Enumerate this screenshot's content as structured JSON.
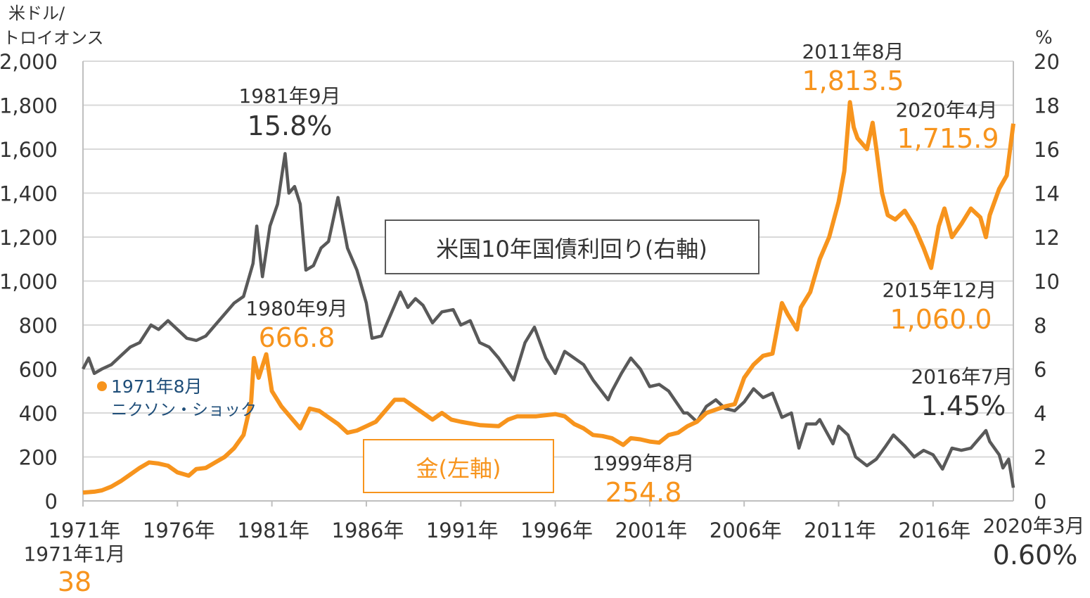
{
  "chart_data": {
    "type": "line",
    "left_axis": {
      "unit_label_line1": "米ドル/",
      "unit_label_line2": "トロイオンス",
      "range": [
        0,
        2000
      ],
      "ticks": [
        "0",
        "200",
        "400",
        "600",
        "800",
        "1,000",
        "1,200",
        "1,400",
        "1,600",
        "1,800",
        "2,000"
      ]
    },
    "right_axis": {
      "unit_label": "%",
      "range": [
        0,
        20
      ],
      "ticks": [
        "0",
        "2",
        "4",
        "6",
        "8",
        "10",
        "12",
        "14",
        "16",
        "18",
        "20"
      ]
    },
    "x_axis": {
      "range": [
        1971,
        2020.25
      ],
      "ticks": [
        1971,
        1976,
        1981,
        1986,
        1991,
        1996,
        2001,
        2006,
        2011,
        2016
      ],
      "tick_labels": [
        "1971年",
        "1976年",
        "1981年",
        "1986年",
        "1991年",
        "1996年",
        "2001年",
        "2006年",
        "2011年",
        "2016年"
      ]
    },
    "grid": "horizontal",
    "colors": {
      "gold": "#F7941D",
      "yield": "#595959",
      "gold_text": "#F7941D",
      "yield_text": "#333333",
      "nixon": "#1F4E79"
    },
    "series": [
      {
        "name": "金(左軸)",
        "axis": "left",
        "x": [
          1971,
          1971.6,
          1972,
          1972.5,
          1973,
          1973.5,
          1974,
          1974.5,
          1975,
          1975.5,
          1976,
          1976.6,
          1977,
          1977.5,
          1978,
          1978.5,
          1979,
          1979.5,
          1979.9,
          1980.05,
          1980.3,
          1980.7,
          1981,
          1981.5,
          1982,
          1982.5,
          1983,
          1983.5,
          1984,
          1984.5,
          1985,
          1985.5,
          1986,
          1986.5,
          1987,
          1987.5,
          1988,
          1988.5,
          1989,
          1989.5,
          1990,
          1990.5,
          1991,
          1992,
          1993,
          1993.5,
          1994,
          1995,
          1996,
          1996.5,
          1997,
          1997.5,
          1998,
          1998.5,
          1999,
          1999.6,
          2000,
          2000.5,
          2001,
          2001.5,
          2002,
          2002.5,
          2003,
          2003.5,
          2004,
          2005,
          2005.5,
          2006,
          2006.5,
          2007,
          2007.5,
          2008,
          2008.3,
          2008.8,
          2009,
          2009.5,
          2010,
          2010.5,
          2011,
          2011.3,
          2011.6,
          2011.8,
          2012,
          2012.5,
          2012.8,
          2013,
          2013.3,
          2013.6,
          2014,
          2014.5,
          2015,
          2015.5,
          2015.9,
          2016.3,
          2016.6,
          2017,
          2017.5,
          2018,
          2018.5,
          2018.8,
          2019,
          2019.5,
          2019.9,
          2020.25
        ],
        "values": [
          38,
          42,
          48,
          65,
          90,
          120,
          150,
          175,
          170,
          160,
          130,
          115,
          145,
          150,
          175,
          200,
          240,
          300,
          450,
          650,
          560,
          666.8,
          500,
          430,
          380,
          330,
          420,
          410,
          380,
          350,
          310,
          320,
          340,
          360,
          410,
          460,
          460,
          430,
          400,
          370,
          400,
          370,
          360,
          345,
          340,
          370,
          385,
          385,
          395,
          385,
          350,
          330,
          300,
          295,
          285,
          254.8,
          285,
          280,
          270,
          265,
          300,
          310,
          340,
          360,
          400,
          430,
          440,
          560,
          620,
          660,
          670,
          900,
          850,
          780,
          880,
          950,
          1100,
          1200,
          1360,
          1500,
          1813.5,
          1700,
          1650,
          1600,
          1720,
          1600,
          1400,
          1300,
          1280,
          1320,
          1250,
          1150,
          1060,
          1250,
          1330,
          1200,
          1260,
          1330,
          1290,
          1200,
          1300,
          1420,
          1480,
          1715.9
        ]
      },
      {
        "name": "米国10年国債利回り(右軸)",
        "axis": "right",
        "x": [
          1971,
          1971.3,
          1971.6,
          1972,
          1972.5,
          1973,
          1973.5,
          1974,
          1974.6,
          1975,
          1975.5,
          1976,
          1976.5,
          1977,
          1977.5,
          1978,
          1978.5,
          1979,
          1979.5,
          1980,
          1980.2,
          1980.5,
          1980.9,
          1981.3,
          1981.7,
          1981.9,
          1982.2,
          1982.5,
          1982.8,
          1983.2,
          1983.6,
          1984,
          1984.5,
          1985,
          1985.5,
          1986,
          1986.3,
          1986.8,
          1987.3,
          1987.8,
          1988.2,
          1988.6,
          1989,
          1989.5,
          1990,
          1990.6,
          1991,
          1991.5,
          1992,
          1992.5,
          1993,
          1993.8,
          1994.4,
          1994.9,
          1995.5,
          1996,
          1996.5,
          1997,
          1997.5,
          1998,
          1998.8,
          1999,
          1999.5,
          2000,
          2000.5,
          2001,
          2001.5,
          2002,
          2002.8,
          2003,
          2003.5,
          2004,
          2004.5,
          2005,
          2005.5,
          2006,
          2006.5,
          2007,
          2007.5,
          2008,
          2008.5,
          2008.9,
          2009.3,
          2009.8,
          2010,
          2010.7,
          2011,
          2011.5,
          2011.9,
          2012.5,
          2013,
          2013.5,
          2013.9,
          2014.5,
          2015,
          2015.5,
          2016,
          2016.5,
          2017,
          2017.5,
          2018,
          2018.5,
          2018.8,
          2019,
          2019.5,
          2019.7,
          2020,
          2020.25
        ],
        "values": [
          6.0,
          6.5,
          5.8,
          6.0,
          6.2,
          6.6,
          7.0,
          7.2,
          8.0,
          7.8,
          8.2,
          7.8,
          7.4,
          7.3,
          7.5,
          8.0,
          8.5,
          9.0,
          9.3,
          10.8,
          12.5,
          10.2,
          12.5,
          13.5,
          15.8,
          14.0,
          14.3,
          13.5,
          10.5,
          10.7,
          11.5,
          11.8,
          13.8,
          11.5,
          10.5,
          9.0,
          7.4,
          7.5,
          8.5,
          9.5,
          8.8,
          9.2,
          8.9,
          8.1,
          8.6,
          8.7,
          8.0,
          8.2,
          7.2,
          7.0,
          6.5,
          5.5,
          7.2,
          7.9,
          6.5,
          5.8,
          6.8,
          6.5,
          6.2,
          5.5,
          4.6,
          5.0,
          5.8,
          6.5,
          6.0,
          5.2,
          5.3,
          5.0,
          4.0,
          4.0,
          3.6,
          4.3,
          4.6,
          4.2,
          4.1,
          4.5,
          5.1,
          4.7,
          4.9,
          3.8,
          4.0,
          2.4,
          3.5,
          3.5,
          3.7,
          2.6,
          3.4,
          3.0,
          2.0,
          1.6,
          1.9,
          2.5,
          3.0,
          2.5,
          2.0,
          2.3,
          2.1,
          1.45,
          2.4,
          2.3,
          2.4,
          2.9,
          3.2,
          2.7,
          2.1,
          1.5,
          1.9,
          0.6
        ]
      }
    ],
    "legend": [
      {
        "label": "米国10年国債利回り(右軸)",
        "series": "yield"
      },
      {
        "label": "金(左軸)",
        "series": "gold"
      }
    ],
    "annotations": [
      {
        "date": "1981年9月",
        "value": "15.8%",
        "series": "yield"
      },
      {
        "date": "1980年9月",
        "value": "666.8",
        "series": "gold"
      },
      {
        "date": "1971年8月",
        "note": "ニクソン・ショック",
        "series": "nixon"
      },
      {
        "date": "1971年1月",
        "value": "38",
        "series": "gold"
      },
      {
        "date": "1999年8月",
        "value": "254.8",
        "series": "gold"
      },
      {
        "date": "2011年8月",
        "value": "1,813.5",
        "series": "gold"
      },
      {
        "date": "2020年4月",
        "value": "1,715.9",
        "series": "gold"
      },
      {
        "date": "2015年12月",
        "value": "1,060.0",
        "series": "gold"
      },
      {
        "date": "2016年7月",
        "value": "1.45%",
        "series": "yield"
      },
      {
        "date": "2020年3月",
        "value": "0.60%",
        "series": "yield"
      }
    ]
  }
}
